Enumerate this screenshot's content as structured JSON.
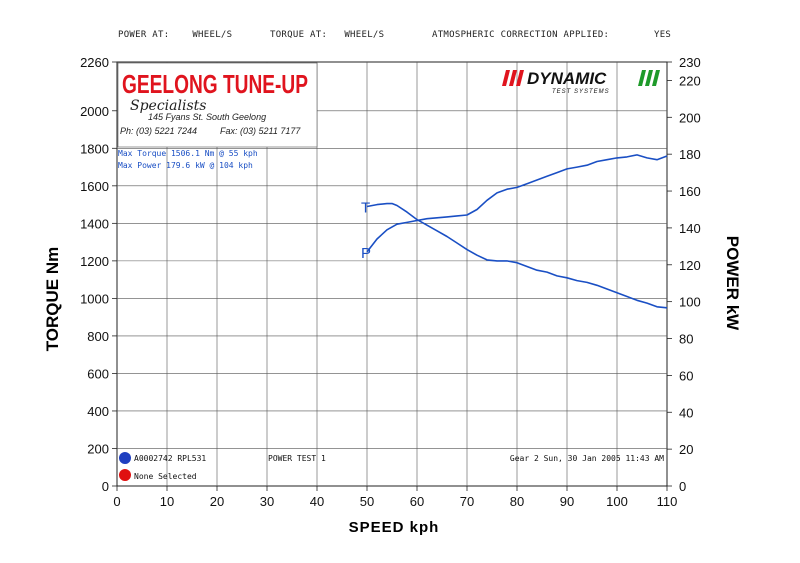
{
  "header": {
    "power_at": "POWER AT:",
    "power_at_value": "WHEEL/S",
    "torque_at": "TORQUE AT:",
    "torque_at_value": "WHEEL/S",
    "atmos": "ATMOSPHERIC CORRECTION APPLIED:",
    "atmos_value": "YES"
  },
  "logo_left": {
    "title": "GEELONG TUNE-UP",
    "script": "Specialists",
    "address": "145 Fyans St. South Geelong",
    "phone": "Ph: (03) 5221 7244",
    "fax": "Fax: (03) 5211 7177"
  },
  "logo_right": {
    "title": "DYNAMIC",
    "sub": "TEST SYSTEMS"
  },
  "max_info": [
    "Max Torque 1506.1 Nm @ 55 kph",
    "Max Power 179.6 kW @ 104 kph"
  ],
  "footer": {
    "run1": "A0002742 RPL531",
    "run2": "None Selected",
    "test": "POWER TEST 1",
    "gear": "Gear 2 Sun, 30 Jan 2005 11:43 AM"
  },
  "colors": {
    "line": "#1a4fc4",
    "grid": "#555555",
    "run1": "#1f3fc0",
    "run2": "#e01010",
    "logo_red": "#e0141e",
    "logo_green": "#1e9a2a"
  },
  "chart_data": {
    "type": "line",
    "xlabel": "SPEED kph",
    "ylabel": "TORQUE Nm",
    "ylabel2": "POWER kW",
    "xlim": [
      0,
      110
    ],
    "ylim": [
      0,
      2260
    ],
    "ylim2": [
      0,
      230
    ],
    "xticks": [
      0,
      10,
      20,
      30,
      40,
      50,
      60,
      70,
      80,
      90,
      100,
      110
    ],
    "yticks": [
      0,
      200,
      400,
      600,
      800,
      1000,
      1200,
      1400,
      1600,
      1800,
      2000,
      2260
    ],
    "yticks2": [
      0,
      20,
      40,
      60,
      80,
      100,
      120,
      140,
      160,
      180,
      200,
      220,
      230
    ],
    "grid": true,
    "series": [
      {
        "name": "T",
        "axis": "left",
        "x": [
          50,
          52,
          54,
          55,
          56,
          58,
          60,
          62,
          64,
          66,
          68,
          70,
          72,
          74,
          76,
          78,
          80,
          82,
          84,
          86,
          88,
          90,
          92,
          94,
          96,
          98,
          100,
          102,
          104,
          106,
          108,
          110
        ],
        "y": [
          1490,
          1500,
          1505,
          1506,
          1495,
          1460,
          1420,
          1390,
          1360,
          1330,
          1295,
          1260,
          1230,
          1205,
          1200,
          1200,
          1190,
          1170,
          1150,
          1140,
          1120,
          1110,
          1095,
          1085,
          1070,
          1050,
          1030,
          1010,
          990,
          975,
          955,
          950
        ]
      },
      {
        "name": "P",
        "axis": "right",
        "x": [
          50,
          52,
          54,
          56,
          58,
          60,
          62,
          64,
          66,
          68,
          70,
          72,
          74,
          76,
          78,
          80,
          82,
          84,
          86,
          88,
          90,
          92,
          94,
          96,
          98,
          100,
          102,
          104,
          106,
          108,
          110
        ],
        "y": [
          127,
          134,
          139,
          142,
          143,
          144,
          145,
          145.5,
          146,
          146.5,
          147,
          150,
          155,
          159,
          161,
          162,
          164,
          166,
          168,
          170,
          172,
          173,
          174,
          176,
          177,
          178,
          178.5,
          179.6,
          178,
          177,
          179
        ]
      }
    ]
  }
}
